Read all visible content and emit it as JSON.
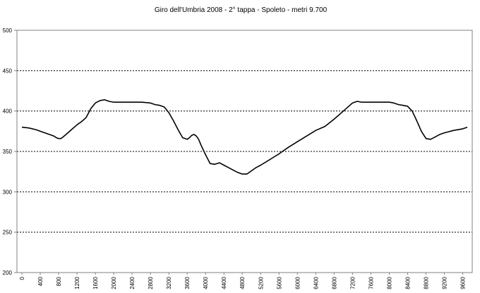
{
  "chart_data": {
    "type": "line",
    "title": "Giro dell'Umbria 2008 - 2° tappa - Spoleto - metri 9.700",
    "xlabel": "",
    "ylabel": "",
    "xlim": [
      0,
      9700
    ],
    "ylim": [
      200,
      500
    ],
    "y_ticks": [
      "500",
      "450",
      "400",
      "350",
      "300",
      "250",
      "200"
    ],
    "y_tick_values": [
      500,
      450,
      400,
      350,
      300,
      250,
      200
    ],
    "x_ticks": [
      "0",
      "400",
      "800",
      "1200",
      "1600",
      "2000",
      "2400",
      "2800",
      "3200",
      "3600",
      "4000",
      "4400",
      "4800",
      "5200",
      "5600",
      "6000",
      "6400",
      "6800",
      "7200",
      "7600",
      "8000",
      "8400",
      "8800",
      "9200",
      "9600"
    ],
    "x_tick_values": [
      0,
      400,
      800,
      1200,
      1600,
      2000,
      2400,
      2800,
      3200,
      3600,
      4000,
      4400,
      4800,
      5200,
      5600,
      6000,
      6400,
      6800,
      7200,
      7600,
      8000,
      8400,
      8800,
      9200,
      9600
    ],
    "grid": true,
    "legend": "none",
    "line_color": "#000000",
    "grid_color": "#000000",
    "series": [
      {
        "x": [
          0,
          150,
          300,
          450,
          600,
          700,
          750,
          800,
          850,
          900,
          1000,
          1100,
          1200,
          1300,
          1400,
          1500,
          1600,
          1700,
          1800,
          1900,
          2000,
          2200,
          2400,
          2600,
          2800,
          2900,
          3000,
          3100,
          3200,
          3300,
          3400,
          3500,
          3600,
          3650,
          3700,
          3750,
          3800,
          3850,
          3900,
          4000,
          4100,
          4200,
          4250,
          4300,
          4400,
          4500,
          4600,
          4700,
          4800,
          4900,
          5000,
          5100,
          5200,
          5400,
          5600,
          5800,
          6000,
          6200,
          6400,
          6600,
          6800,
          7000,
          7200,
          7300,
          7400,
          7600,
          7800,
          8000,
          8100,
          8200,
          8300,
          8400,
          8500,
          8600,
          8700,
          8800,
          8900,
          9000,
          9100,
          9200,
          9400,
          9600,
          9700
        ],
        "y": [
          380,
          379,
          377,
          374,
          371,
          369,
          367,
          366,
          366,
          368,
          373,
          378,
          383,
          387,
          392,
          403,
          410,
          413,
          414,
          412,
          411,
          411,
          411,
          411,
          410,
          408,
          407,
          405,
          398,
          388,
          377,
          367,
          365,
          367,
          370,
          371,
          369,
          365,
          358,
          346,
          335,
          334,
          335,
          336,
          333,
          330,
          327,
          324,
          322,
          322,
          326,
          330,
          333,
          340,
          347,
          355,
          362,
          369,
          376,
          381,
          390,
          400,
          410,
          412,
          411,
          411,
          411,
          411,
          410,
          408,
          407,
          406,
          400,
          388,
          375,
          366,
          365,
          368,
          371,
          373,
          376,
          378,
          380
        ]
      }
    ]
  }
}
